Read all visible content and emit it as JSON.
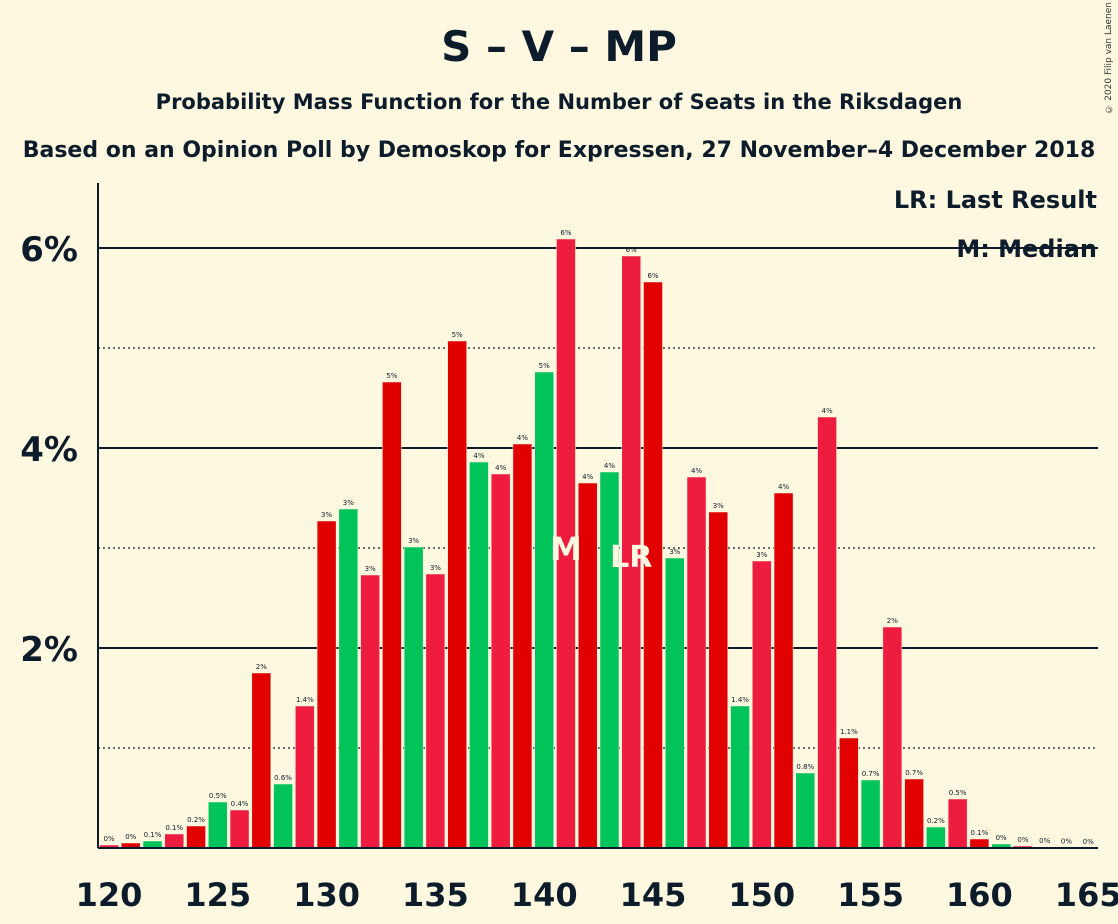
{
  "title": "S – V – MP",
  "subtitle": "Probability Mass Function for the Number of Seats in the Riksdagen",
  "subtitle2": "Based on an Opinion Poll by Demoskop for Expressen, 27 November–4 December 2018",
  "copyright": "© 2020 Filip van Laenen",
  "legend": {
    "last_result": "LR: Last Result",
    "median": "M: Median"
  },
  "colors": {
    "background": "#FFF8E1",
    "red_dark": "#E00000",
    "red_light": "#EE1C3E",
    "green": "#00C45A",
    "text": "#0d1c2a"
  },
  "chart_data": {
    "type": "bar",
    "x": [
      120,
      121,
      122,
      123,
      124,
      125,
      126,
      127,
      128,
      129,
      130,
      131,
      132,
      133,
      134,
      135,
      136,
      137,
      138,
      139,
      140,
      141,
      142,
      143,
      144,
      145,
      146,
      147,
      148,
      149,
      150,
      151,
      152,
      153,
      154,
      155,
      156,
      157,
      158,
      159,
      160,
      161,
      162,
      163,
      164,
      165
    ],
    "values": [
      0.03,
      0.05,
      0.07,
      0.14,
      0.22,
      0.46,
      0.38,
      1.75,
      0.64,
      1.42,
      3.27,
      3.39,
      2.73,
      4.66,
      3.01,
      2.74,
      5.07,
      3.86,
      3.74,
      4.04,
      4.76,
      6.09,
      3.65,
      3.76,
      5.92,
      5.66,
      2.9,
      3.71,
      3.36,
      1.42,
      2.87,
      3.55,
      0.75,
      4.31,
      1.1,
      0.68,
      2.21,
      0.69,
      0.21,
      0.49,
      0.09,
      0.04,
      0.02,
      0.01,
      0.005,
      0.002
    ],
    "labels": [
      "0%",
      "0%",
      "0.1%",
      "0.1%",
      "0.2%",
      "0.5%",
      "0.4%",
      "2%",
      "0.6%",
      "1.4%",
      "3%",
      "3%",
      "3%",
      "5%",
      "3%",
      "3%",
      "5%",
      "4%",
      "4%",
      "4%",
      "5%",
      "6%",
      "4%",
      "4%",
      "6%",
      "6%",
      "3%",
      "4%",
      "3%",
      "1.4%",
      "3%",
      "4%",
      "0.8%",
      "4%",
      "1.1%",
      "0.7%",
      "2%",
      "0.7%",
      "0.2%",
      "0.5%",
      "0.1%",
      "0%",
      "0%",
      "0%",
      "0%",
      "0%"
    ],
    "bar_colors": [
      "red_light",
      "red_dark",
      "green",
      "red_light",
      "red_dark",
      "green",
      "red_light",
      "red_dark",
      "green",
      "red_light",
      "red_dark",
      "green",
      "red_light",
      "red_dark",
      "green",
      "red_light",
      "red_dark",
      "green",
      "red_light",
      "red_dark",
      "green",
      "red_light",
      "red_dark",
      "green",
      "red_light",
      "red_dark",
      "green",
      "red_light",
      "red_dark",
      "green",
      "red_light",
      "red_dark",
      "green",
      "red_light",
      "red_dark",
      "green",
      "red_light",
      "red_dark",
      "green",
      "red_light",
      "red_dark",
      "green",
      "red_light",
      "red_dark",
      "green",
      "red_light"
    ],
    "x_ticks": [
      120,
      125,
      130,
      135,
      140,
      145,
      150,
      155,
      160,
      165
    ],
    "y_ticks": [
      2,
      4,
      6
    ],
    "y_tick_labels": [
      "2%",
      "4%",
      "6%"
    ],
    "ylim": [
      0,
      6.6
    ],
    "median": {
      "x": 141,
      "label": "M"
    },
    "last_result": {
      "x": 144,
      "label": "LR"
    }
  }
}
